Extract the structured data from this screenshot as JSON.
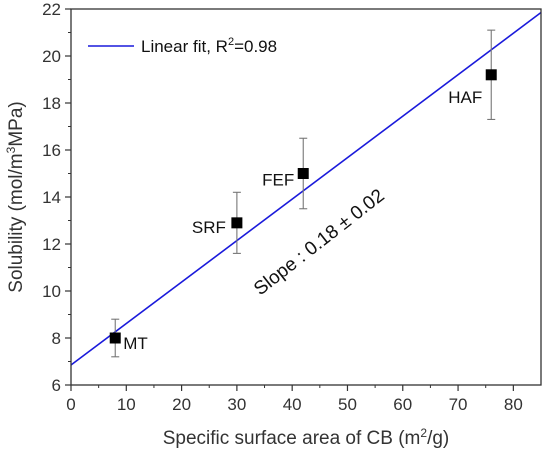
{
  "chart_data": {
    "type": "scatter",
    "xlabel_main": "Specific surface area of CB (m",
    "xlabel_sup": "2",
    "xlabel_end": "/g)",
    "ylabel_main": "Solubility (mol/m",
    "ylabel_sup": "3",
    "ylabel_end": "MPa)",
    "xlim": [
      0,
      85
    ],
    "ylim": [
      6,
      22
    ],
    "xticks": [
      0,
      10,
      20,
      30,
      40,
      50,
      60,
      70,
      80
    ],
    "yticks": [
      6,
      8,
      10,
      12,
      14,
      16,
      18,
      20,
      22
    ],
    "points": [
      {
        "label": "MT",
        "x": 8,
        "y": 8.0,
        "err_low": 0.8,
        "err_high": 0.8
      },
      {
        "label": "SRF",
        "x": 30,
        "y": 12.9,
        "err_low": 1.3,
        "err_high": 1.3
      },
      {
        "label": "FEF",
        "x": 42,
        "y": 15.0,
        "err_low": 1.5,
        "err_high": 1.5
      },
      {
        "label": "HAF",
        "x": 76,
        "y": 19.2,
        "err_low": 1.9,
        "err_high": 1.9
      }
    ],
    "fit": {
      "x": [
        0,
        85
      ],
      "y": [
        6.85,
        21.85
      ]
    },
    "legend": {
      "text_main": "Linear fit, R",
      "text_sup": "2",
      "text_end": "=0.98",
      "position": "top-left"
    },
    "annotation": "Slope : 0.18 ± 0.02",
    "colors": {
      "fit_line": "#1a1adb",
      "marker": "#000000",
      "errorbar": "#777777",
      "axis": "#333333"
    }
  }
}
